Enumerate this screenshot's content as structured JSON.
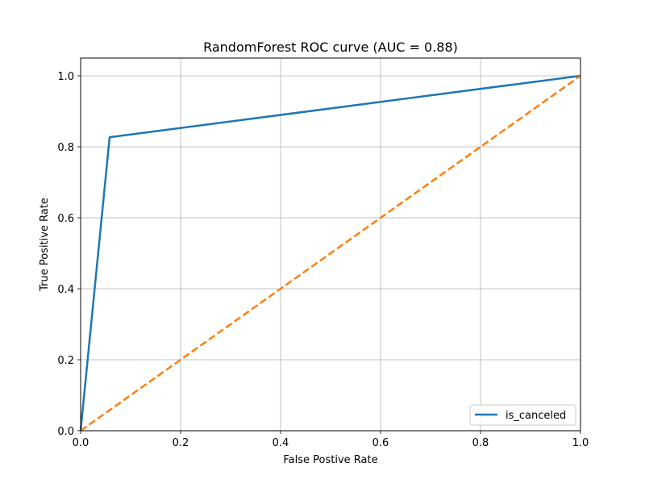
{
  "chart_data": {
    "type": "line",
    "title": "RandomForest ROC curve (AUC = 0.88)",
    "xlabel": "False Postive Rate",
    "ylabel": "True Positive Rate",
    "xlim": [
      0.0,
      1.0
    ],
    "ylim": [
      0.0,
      1.05
    ],
    "grid": true,
    "legend_position": "bottom-right",
    "x_ticks": [
      0.0,
      0.2,
      0.4,
      0.6,
      0.8,
      1.0
    ],
    "y_ticks": [
      0.0,
      0.2,
      0.4,
      0.6,
      0.8,
      1.0
    ],
    "x_tick_labels": [
      "0.0",
      "0.2",
      "0.4",
      "0.6",
      "0.8",
      "1.0"
    ],
    "y_tick_labels": [
      "0.0",
      "0.2",
      "0.4",
      "0.6",
      "0.8",
      "1.0"
    ],
    "series": [
      {
        "name": "is_canceled",
        "color": "#1f77b4",
        "style": "solid",
        "x": [
          0.0,
          0.058,
          1.0
        ],
        "y": [
          0.0,
          0.827,
          1.0
        ]
      },
      {
        "color": "#ff7f0e",
        "style": "dashed",
        "x": [
          0.0,
          1.0
        ],
        "y": [
          0.0,
          1.0
        ]
      }
    ]
  }
}
